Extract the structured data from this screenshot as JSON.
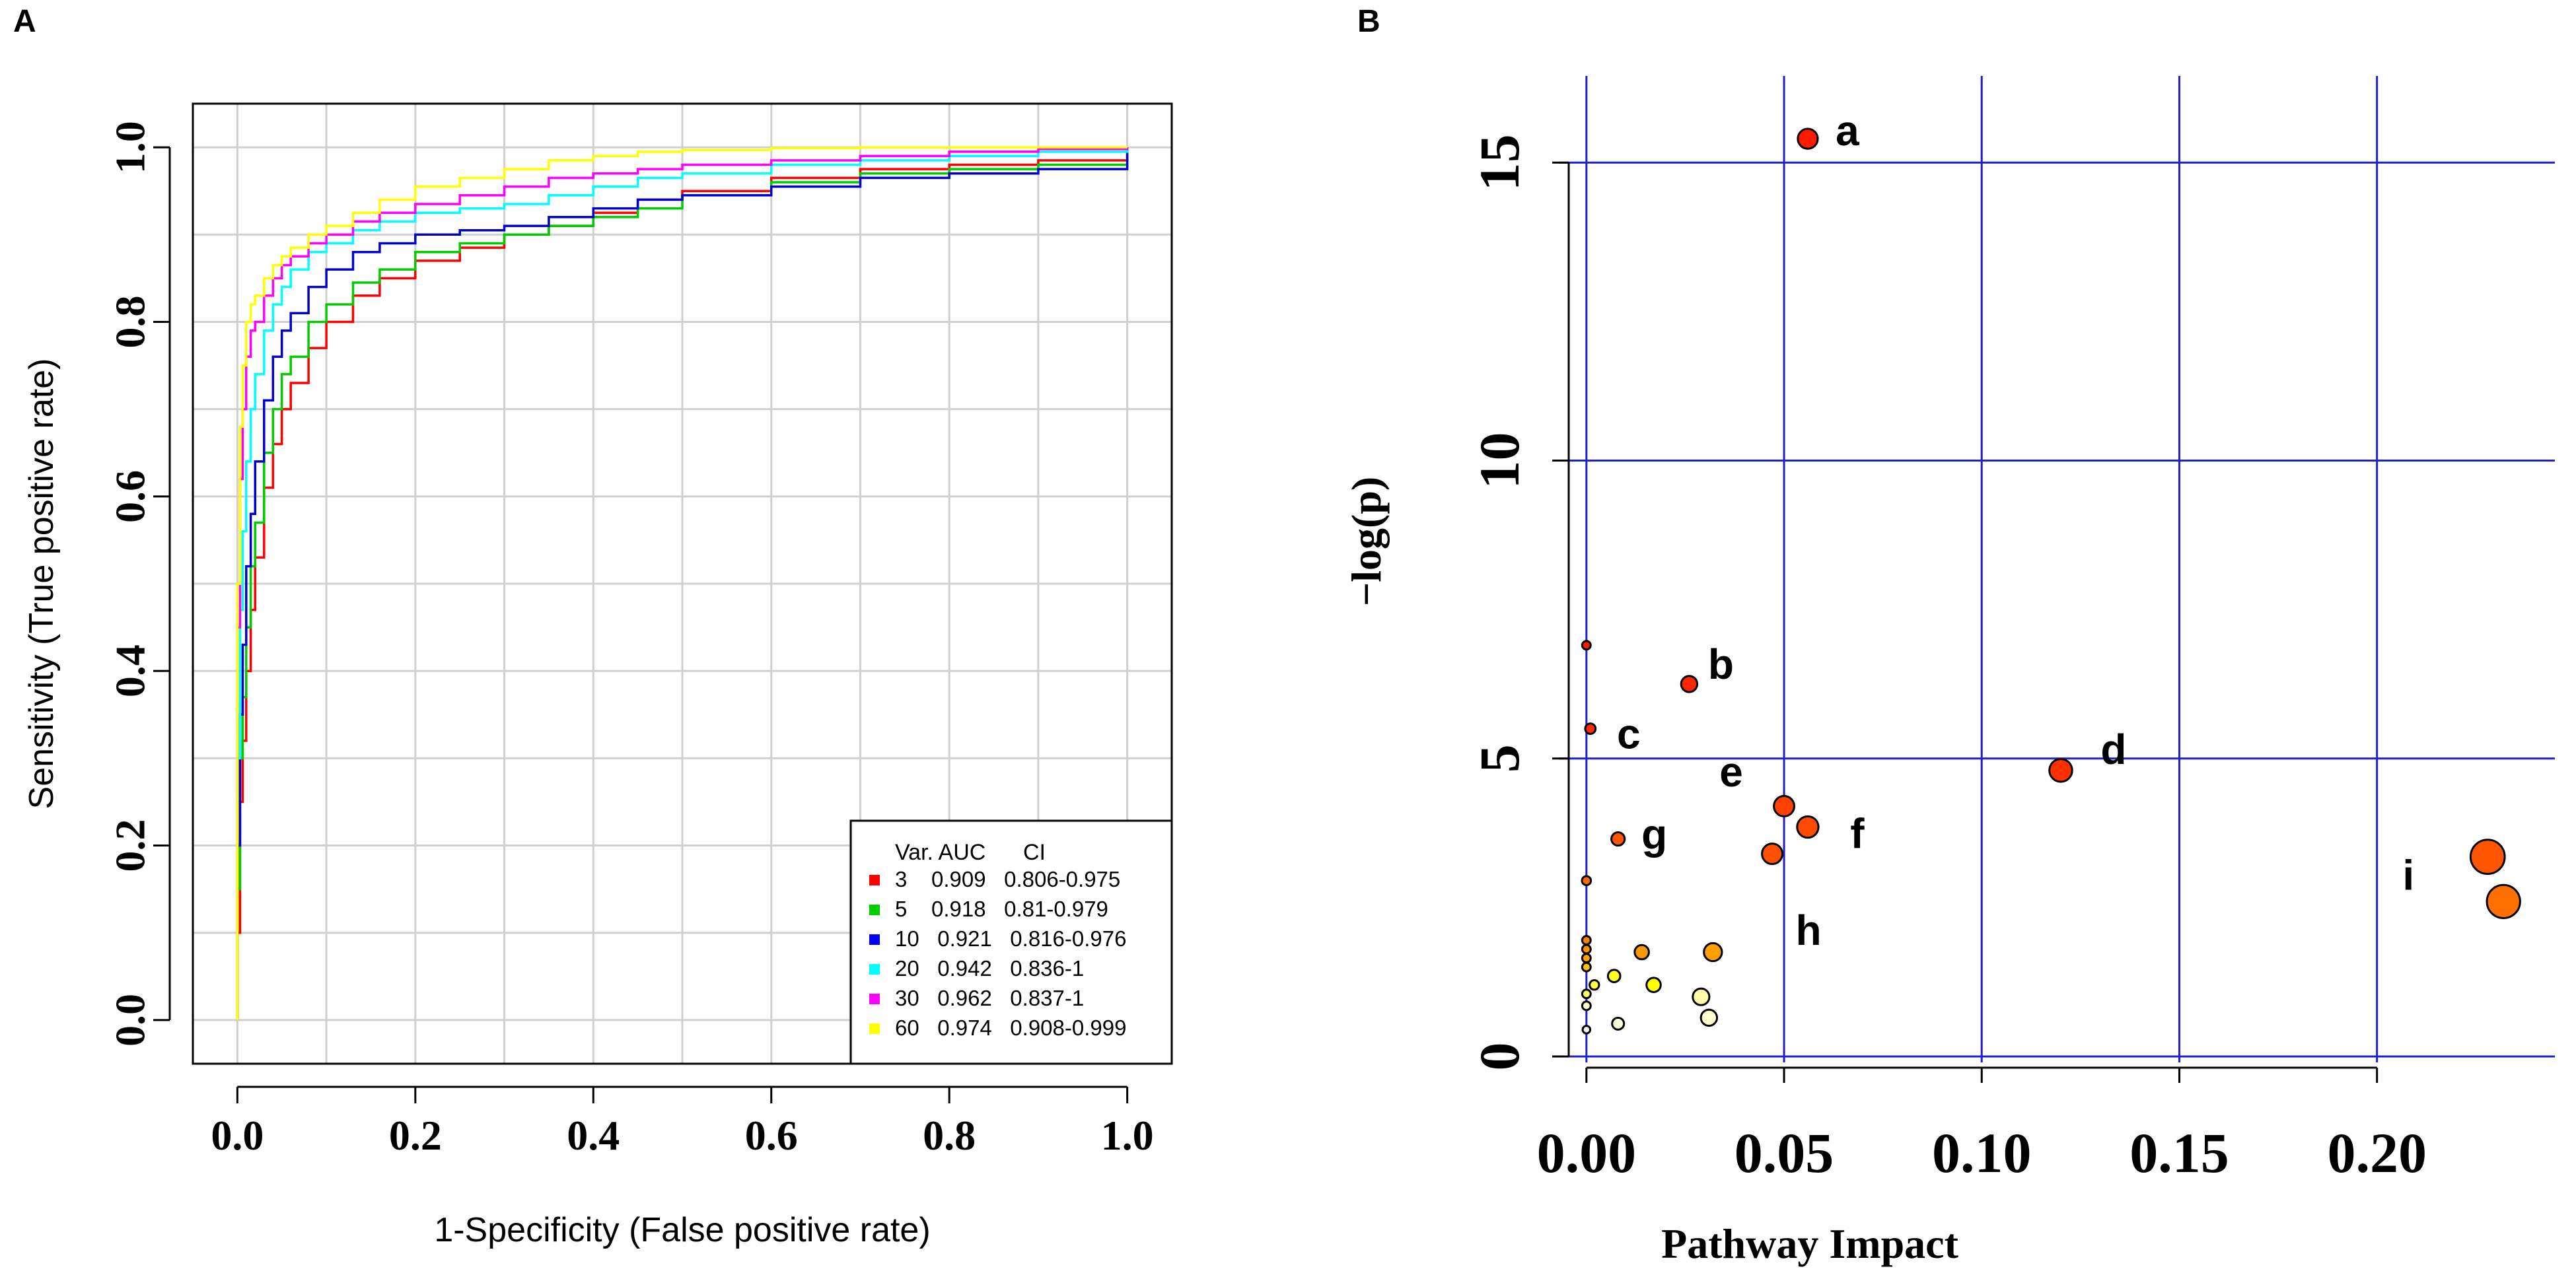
{
  "figure": {
    "panel_a_label": "A",
    "panel_b_label": "B"
  },
  "chart_data": [
    {
      "type": "line",
      "panel": "A",
      "title": "",
      "xlabel": "1-Specificity (False positive rate)",
      "ylabel": "Sensitivity (True positive rate)",
      "xlim": [
        -0.05,
        1.05
      ],
      "ylim": [
        -0.05,
        1.05
      ],
      "xticks": [
        0.0,
        0.2,
        0.4,
        0.6,
        0.8,
        1.0
      ],
      "yticks": [
        0.0,
        0.2,
        0.4,
        0.6,
        0.8,
        1.0
      ],
      "xtick_labels": [
        "0.0",
        "0.2",
        "0.4",
        "0.6",
        "0.8",
        "1.0"
      ],
      "ytick_labels": [
        "0.0",
        "0.2",
        "0.4",
        "0.6",
        "0.8",
        "1.0"
      ],
      "grid": true,
      "legend": {
        "position": "bottom-right",
        "header": "Var. AUC      CI",
        "entries": [
          {
            "text": "3    0.909   0.806-0.975",
            "color": "#ff0000"
          },
          {
            "text": "5    0.918   0.81-0.979",
            "color": "#00cc00"
          },
          {
            "text": "10   0.921   0.816-0.976",
            "color": "#0000ff"
          },
          {
            "text": "20   0.942   0.836-1",
            "color": "#00ffff"
          },
          {
            "text": "30   0.962   0.837-1",
            "color": "#ff00ff"
          },
          {
            "text": "60   0.974   0.908-0.999",
            "color": "#ffff00"
          }
        ]
      },
      "series": [
        {
          "name": "3",
          "auc": 0.909,
          "ci": "0.806-0.975",
          "color": "#ff0000",
          "x": [
            0,
            0,
            0.003,
            0.006,
            0.01,
            0.015,
            0.02,
            0.03,
            0.04,
            0.05,
            0.06,
            0.08,
            0.1,
            0.13,
            0.16,
            0.2,
            0.25,
            0.3,
            0.35,
            0.4,
            0.45,
            0.5,
            0.6,
            0.7,
            0.8,
            0.9,
            1.0,
            1.0
          ],
          "y": [
            0,
            0.1,
            0.25,
            0.32,
            0.4,
            0.47,
            0.53,
            0.61,
            0.66,
            0.7,
            0.73,
            0.77,
            0.8,
            0.83,
            0.85,
            0.87,
            0.885,
            0.9,
            0.91,
            0.925,
            0.94,
            0.95,
            0.965,
            0.975,
            0.98,
            0.985,
            0.99,
            1.0
          ]
        },
        {
          "name": "5",
          "auc": 0.918,
          "ci": "0.81-0.979",
          "color": "#00cc00",
          "x": [
            0,
            0,
            0.003,
            0.006,
            0.01,
            0.015,
            0.02,
            0.03,
            0.04,
            0.05,
            0.06,
            0.08,
            0.1,
            0.13,
            0.16,
            0.2,
            0.25,
            0.3,
            0.35,
            0.4,
            0.45,
            0.5,
            0.6,
            0.7,
            0.8,
            0.9,
            1.0,
            1.0
          ],
          "y": [
            0,
            0.15,
            0.3,
            0.37,
            0.45,
            0.52,
            0.57,
            0.65,
            0.7,
            0.74,
            0.76,
            0.8,
            0.82,
            0.845,
            0.86,
            0.88,
            0.89,
            0.9,
            0.91,
            0.92,
            0.93,
            0.945,
            0.96,
            0.97,
            0.975,
            0.98,
            0.99,
            1.0
          ]
        },
        {
          "name": "10",
          "auc": 0.921,
          "ci": "0.816-0.976",
          "color": "#0000cc",
          "x": [
            0,
            0,
            0.003,
            0.006,
            0.01,
            0.015,
            0.02,
            0.03,
            0.04,
            0.05,
            0.06,
            0.08,
            0.1,
            0.13,
            0.16,
            0.2,
            0.25,
            0.3,
            0.35,
            0.4,
            0.45,
            0.5,
            0.6,
            0.7,
            0.8,
            0.9,
            1.0,
            1.0
          ],
          "y": [
            0,
            0.2,
            0.35,
            0.43,
            0.52,
            0.58,
            0.64,
            0.71,
            0.76,
            0.79,
            0.81,
            0.84,
            0.86,
            0.88,
            0.89,
            0.9,
            0.905,
            0.91,
            0.92,
            0.93,
            0.94,
            0.945,
            0.955,
            0.965,
            0.97,
            0.975,
            0.98,
            1.0
          ]
        },
        {
          "name": "20",
          "auc": 0.942,
          "ci": "0.836-1",
          "color": "#00ffff",
          "x": [
            0,
            0,
            0.003,
            0.006,
            0.01,
            0.015,
            0.02,
            0.03,
            0.04,
            0.05,
            0.06,
            0.08,
            0.1,
            0.13,
            0.16,
            0.2,
            0.25,
            0.3,
            0.35,
            0.4,
            0.45,
            0.5,
            0.6,
            0.7,
            0.8,
            0.9,
            1.0,
            1.0
          ],
          "y": [
            0,
            0.3,
            0.47,
            0.56,
            0.64,
            0.7,
            0.74,
            0.79,
            0.82,
            0.84,
            0.86,
            0.88,
            0.89,
            0.905,
            0.915,
            0.925,
            0.93,
            0.935,
            0.945,
            0.955,
            0.965,
            0.97,
            0.98,
            0.985,
            0.99,
            0.995,
            1.0,
            1.0
          ]
        },
        {
          "name": "30",
          "auc": 0.962,
          "ci": "0.837-1",
          "color": "#ff00ff",
          "x": [
            0,
            0,
            0.003,
            0.006,
            0.01,
            0.015,
            0.02,
            0.03,
            0.04,
            0.05,
            0.06,
            0.08,
            0.1,
            0.13,
            0.16,
            0.2,
            0.25,
            0.3,
            0.35,
            0.4,
            0.45,
            0.5,
            0.6,
            0.7,
            0.8,
            0.9,
            1.0,
            1.0
          ],
          "y": [
            0,
            0.45,
            0.62,
            0.7,
            0.76,
            0.79,
            0.8,
            0.83,
            0.85,
            0.865,
            0.875,
            0.89,
            0.9,
            0.915,
            0.925,
            0.935,
            0.945,
            0.955,
            0.965,
            0.97,
            0.975,
            0.98,
            0.985,
            0.99,
            0.995,
            0.998,
            1.0,
            1.0
          ]
        },
        {
          "name": "60",
          "auc": 0.974,
          "ci": "0.908-0.999",
          "color": "#ffff00",
          "x": [
            0,
            0,
            0.003,
            0.006,
            0.01,
            0.015,
            0.02,
            0.03,
            0.04,
            0.05,
            0.06,
            0.08,
            0.1,
            0.13,
            0.16,
            0.2,
            0.25,
            0.3,
            0.35,
            0.4,
            0.45,
            0.5,
            0.6,
            0.7,
            0.8,
            0.9,
            1.0,
            1.0
          ],
          "y": [
            0,
            0.5,
            0.68,
            0.75,
            0.8,
            0.82,
            0.83,
            0.85,
            0.865,
            0.875,
            0.885,
            0.9,
            0.91,
            0.925,
            0.94,
            0.955,
            0.965,
            0.975,
            0.985,
            0.99,
            0.995,
            0.997,
            0.999,
            1.0,
            1.0,
            1.0,
            1.0,
            1.0
          ]
        }
      ]
    },
    {
      "type": "scatter",
      "panel": "B",
      "title": "",
      "xlabel": "Pathway Impact",
      "ylabel": "−log(p)",
      "xlim": [
        -0.012,
        0.245
      ],
      "ylim": [
        -0.1,
        15.9
      ],
      "xticks": [
        0.0,
        0.05,
        0.1,
        0.15,
        0.2
      ],
      "yticks": [
        0,
        5,
        10,
        15
      ],
      "xtick_labels": [
        "0.00",
        "0.05",
        "0.10",
        "0.15",
        "0.20"
      ],
      "ytick_labels": [
        "0",
        "5",
        "10",
        "15"
      ],
      "grid": true,
      "points": [
        {
          "x": 0.056,
          "y": 15.4,
          "r": 0.042,
          "color": "#ff1a00",
          "label": "a"
        },
        {
          "x": 0.0,
          "y": 6.9,
          "r": 0.018,
          "color": "#ff1a00",
          "label": ""
        },
        {
          "x": 0.026,
          "y": 6.25,
          "r": 0.034,
          "color": "#ff2500",
          "label": "b"
        },
        {
          "x": 0.001,
          "y": 5.5,
          "r": 0.022,
          "color": "#ff2a00",
          "label": "c"
        },
        {
          "x": 0.12,
          "y": 4.8,
          "r": 0.048,
          "color": "#ff3000",
          "label": "d"
        },
        {
          "x": 0.05,
          "y": 4.2,
          "r": 0.043,
          "color": "#ff4000",
          "label": "e"
        },
        {
          "x": 0.056,
          "y": 3.85,
          "r": 0.045,
          "color": "#ff4a00",
          "label": "f"
        },
        {
          "x": 0.008,
          "y": 3.65,
          "r": 0.028,
          "color": "#ff5500",
          "label": "g"
        },
        {
          "x": 0.047,
          "y": 3.4,
          "r": 0.043,
          "color": "#ff5000",
          "label": "h"
        },
        {
          "x": 0.0,
          "y": 2.95,
          "r": 0.019,
          "color": "#ff6a00",
          "label": ""
        },
        {
          "x": 0.228,
          "y": 3.35,
          "r": 0.072,
          "color": "#ff5500",
          "label": "i"
        },
        {
          "x": 0.232,
          "y": 2.6,
          "r": 0.07,
          "color": "#ff7000",
          "label": ""
        },
        {
          "x": 0.0,
          "y": 1.95,
          "r": 0.018,
          "color": "#ff8000",
          "label": ""
        },
        {
          "x": 0.0,
          "y": 1.8,
          "r": 0.018,
          "color": "#ff9000",
          "label": ""
        },
        {
          "x": 0.0,
          "y": 1.65,
          "r": 0.018,
          "color": "#ffa000",
          "label": ""
        },
        {
          "x": 0.0,
          "y": 1.5,
          "r": 0.018,
          "color": "#ffc000",
          "label": ""
        },
        {
          "x": 0.014,
          "y": 1.75,
          "r": 0.03,
          "color": "#ff9900",
          "label": ""
        },
        {
          "x": 0.032,
          "y": 1.75,
          "r": 0.038,
          "color": "#ff9f00",
          "label": ""
        },
        {
          "x": 0.007,
          "y": 1.35,
          "r": 0.026,
          "color": "#ffff22",
          "label": ""
        },
        {
          "x": 0.002,
          "y": 1.2,
          "r": 0.02,
          "color": "#ffff44",
          "label": ""
        },
        {
          "x": 0.0,
          "y": 1.05,
          "r": 0.018,
          "color": "#ffff66",
          "label": ""
        },
        {
          "x": 0.017,
          "y": 1.2,
          "r": 0.03,
          "color": "#ffff00",
          "label": ""
        },
        {
          "x": 0.029,
          "y": 1.0,
          "r": 0.035,
          "color": "#ffffaa",
          "label": ""
        },
        {
          "x": 0.0,
          "y": 0.85,
          "r": 0.018,
          "color": "#ffffcc",
          "label": ""
        },
        {
          "x": 0.008,
          "y": 0.55,
          "r": 0.025,
          "color": "#ffffdd",
          "label": ""
        },
        {
          "x": 0.031,
          "y": 0.65,
          "r": 0.034,
          "color": "#ffffd0",
          "label": ""
        },
        {
          "x": 0.0,
          "y": 0.45,
          "r": 0.016,
          "color": "#ffffff",
          "label": ""
        }
      ]
    }
  ]
}
